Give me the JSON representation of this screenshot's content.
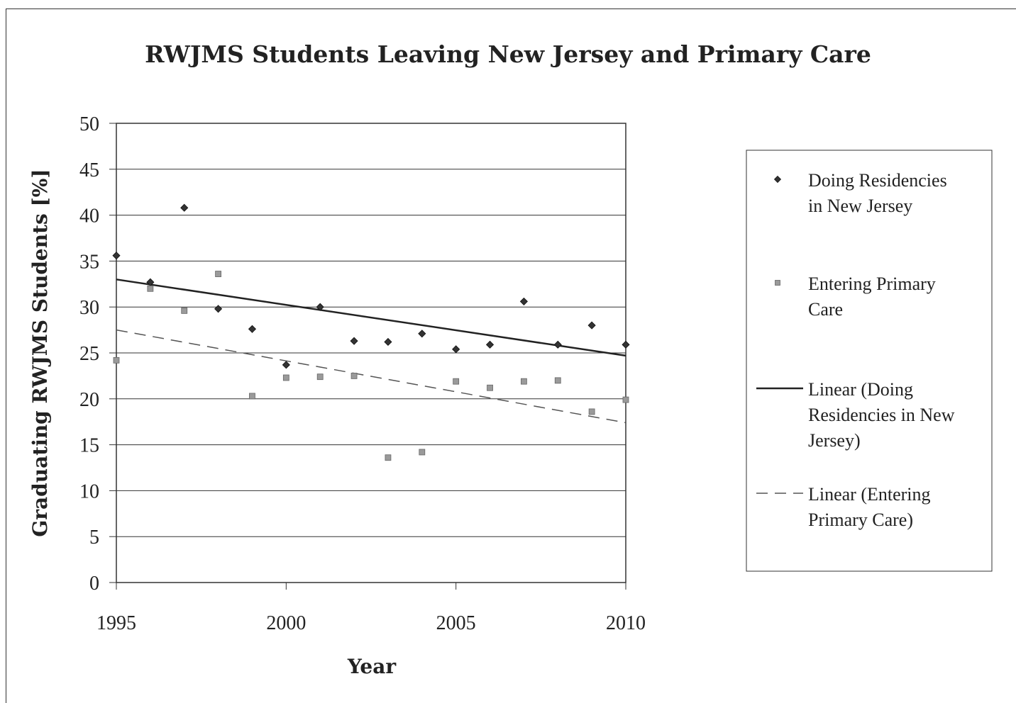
{
  "chart_data": {
    "type": "scatter",
    "title": "RWJMS Students Leaving New Jersey and Primary Care",
    "xlabel": "Year",
    "ylabel": "Graduating RWJMS Students [%]",
    "xlim": [
      1995,
      2010
    ],
    "ylim": [
      0,
      50
    ],
    "x_ticks": [
      "1995",
      "2000",
      "2005",
      "2010"
    ],
    "y_ticks": [
      "0",
      "5",
      "10",
      "15",
      "20",
      "25",
      "30",
      "35",
      "40",
      "45",
      "50"
    ],
    "grid": "horizontal",
    "legend_position": "right",
    "series": [
      {
        "name": "Doing Residencies in New Jersey",
        "marker": "diamond",
        "color": "#333333",
        "x": [
          1995,
          1996,
          1997,
          1998,
          1999,
          2000,
          2001,
          2002,
          2003,
          2004,
          2005,
          2006,
          2007,
          2008,
          2009,
          2010
        ],
        "y": [
          35.6,
          32.7,
          40.8,
          29.8,
          27.6,
          23.7,
          30.0,
          26.3,
          26.2,
          27.1,
          25.4,
          25.9,
          30.6,
          25.9,
          28.0,
          25.9
        ]
      },
      {
        "name": "Entering Primary Care",
        "marker": "square",
        "color": "#9a9a9a",
        "x": [
          1995,
          1996,
          1997,
          1998,
          1999,
          2000,
          2001,
          2002,
          2003,
          2004,
          2005,
          2006,
          2007,
          2008,
          2009,
          2010
        ],
        "y": [
          24.2,
          32.0,
          29.6,
          33.6,
          20.3,
          22.3,
          22.4,
          22.5,
          13.6,
          14.2,
          21.9,
          21.2,
          21.9,
          22.0,
          18.6,
          19.9
        ]
      }
    ],
    "trendlines": [
      {
        "name": "Linear (Doing Residencies in New Jersey)",
        "style": "solid",
        "color": "#222222",
        "x": [
          1995,
          2010
        ],
        "y": [
          33.0,
          24.7
        ]
      },
      {
        "name": "Linear (Entering Primary Care)",
        "style": "dashed",
        "color": "#555555",
        "x": [
          1995,
          2010
        ],
        "y": [
          27.5,
          17.4
        ]
      }
    ]
  },
  "legend": [
    {
      "lines": [
        "Doing Residencies",
        "in New Jersey"
      ]
    },
    {
      "lines": [
        "Entering Primary",
        "Care"
      ]
    },
    {
      "lines": [
        "Linear (Doing",
        "Residencies in New",
        "Jersey)"
      ]
    },
    {
      "lines": [
        "Linear (Entering",
        "Primary Care)"
      ]
    }
  ]
}
